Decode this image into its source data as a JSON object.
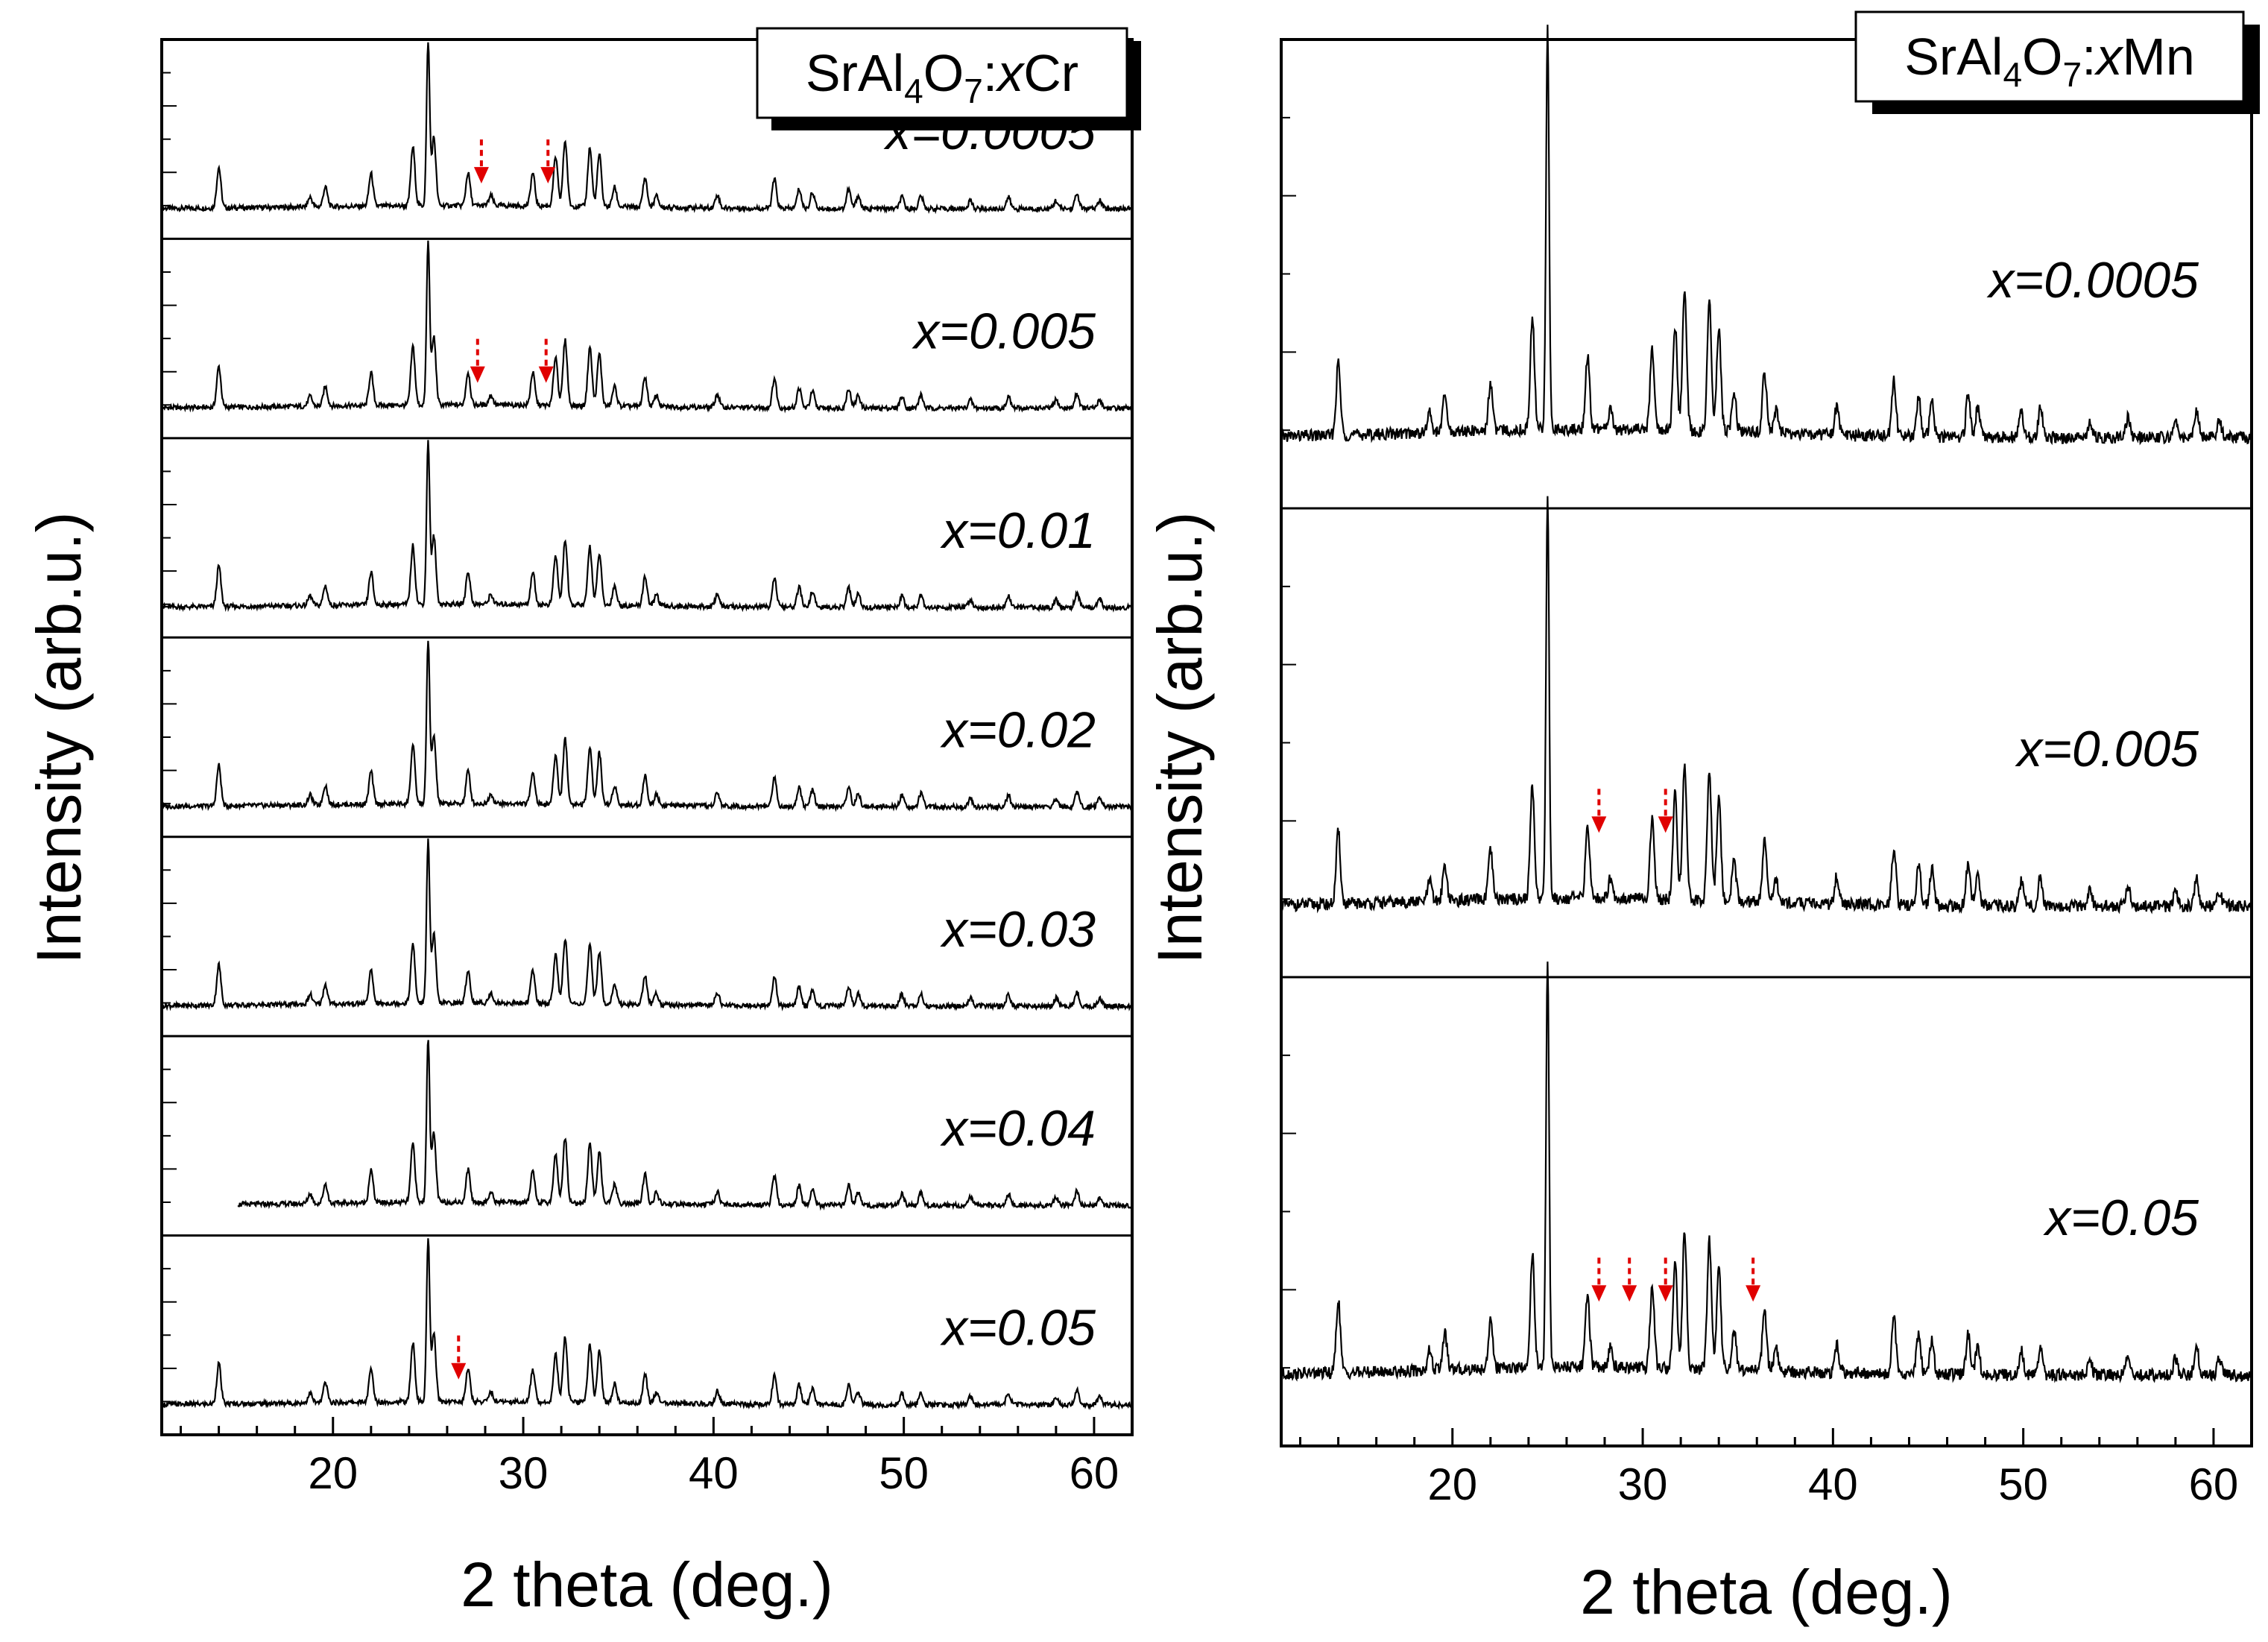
{
  "chart_data": [
    {
      "type": "line",
      "subtype": "stacked-xrd",
      "legend_label": {
        "base": "SrAl",
        "sub1": "4",
        "mid": "O",
        "sub2": "7",
        "sep": ":",
        "dopant_var": "x",
        "dopant": "Cr"
      },
      "xlabel": "2 theta (deg.)",
      "ylabel": "Intensity (arb.u.)",
      "xlim": [
        11,
        62
      ],
      "xticks": [
        20,
        30,
        40,
        50,
        60
      ],
      "xtick_labels": [
        "20",
        "30",
        "40",
        "50",
        "60"
      ],
      "series": [
        {
          "name": "x=0.0005",
          "label": "x=0.0005",
          "impurity_markers": [
            27.8,
            31.3
          ]
        },
        {
          "name": "x=0.005",
          "label": "x=0.005",
          "impurity_markers": [
            27.6,
            31.2
          ]
        },
        {
          "name": "x=0.01",
          "label": "x=0.01",
          "impurity_markers": []
        },
        {
          "name": "x=0.02",
          "label": "x=0.02",
          "impurity_markers": []
        },
        {
          "name": "x=0.03",
          "label": "x=0.03",
          "impurity_markers": []
        },
        {
          "name": "x=0.04",
          "label": "x=0.04",
          "impurity_markers": [],
          "x_start": 15
        },
        {
          "name": "x=0.05",
          "label": "x=0.05",
          "impurity_markers": [
            26.6
          ]
        }
      ],
      "peaks": [
        {
          "x": 14.0,
          "h": 0.25
        },
        {
          "x": 18.8,
          "h": 0.06
        },
        {
          "x": 19.6,
          "h": 0.12
        },
        {
          "x": 22.0,
          "h": 0.2
        },
        {
          "x": 24.2,
          "h": 0.36
        },
        {
          "x": 25.0,
          "h": 1.0
        },
        {
          "x": 25.3,
          "h": 0.42
        },
        {
          "x": 27.1,
          "h": 0.2
        },
        {
          "x": 28.3,
          "h": 0.06
        },
        {
          "x": 30.5,
          "h": 0.2
        },
        {
          "x": 31.7,
          "h": 0.3
        },
        {
          "x": 32.2,
          "h": 0.4
        },
        {
          "x": 33.5,
          "h": 0.36
        },
        {
          "x": 34.0,
          "h": 0.32
        },
        {
          "x": 34.8,
          "h": 0.12
        },
        {
          "x": 36.4,
          "h": 0.18
        },
        {
          "x": 37.0,
          "h": 0.07
        },
        {
          "x": 40.2,
          "h": 0.08
        },
        {
          "x": 43.2,
          "h": 0.18
        },
        {
          "x": 44.5,
          "h": 0.12
        },
        {
          "x": 45.2,
          "h": 0.1
        },
        {
          "x": 47.1,
          "h": 0.12
        },
        {
          "x": 47.6,
          "h": 0.08
        },
        {
          "x": 49.9,
          "h": 0.07
        },
        {
          "x": 50.9,
          "h": 0.08
        },
        {
          "x": 53.5,
          "h": 0.05
        },
        {
          "x": 55.5,
          "h": 0.07
        },
        {
          "x": 58.0,
          "h": 0.05
        },
        {
          "x": 59.1,
          "h": 0.09
        },
        {
          "x": 60.3,
          "h": 0.05
        }
      ]
    },
    {
      "type": "line",
      "subtype": "stacked-xrd",
      "legend_label": {
        "base": "SrAl",
        "sub1": "4",
        "mid": "O",
        "sub2": "7",
        "sep": ":",
        "dopant_var": "x",
        "dopant": "Mn"
      },
      "xlabel": "2 theta (deg.)",
      "ylabel": "Intensity (arb.u.)",
      "xlim": [
        11,
        62
      ],
      "xticks": [
        20,
        30,
        40,
        50,
        60
      ],
      "xtick_labels": [
        "20",
        "30",
        "40",
        "50",
        "60"
      ],
      "series": [
        {
          "name": "x=0.0005",
          "label": "x=0.0005",
          "impurity_markers": []
        },
        {
          "name": "x=0.005",
          "label": "x=0.005",
          "impurity_markers": [
            27.7,
            31.2
          ]
        },
        {
          "name": "x=0.05",
          "label": "x=0.05",
          "impurity_markers": [
            27.7,
            29.3,
            31.2,
            35.8
          ]
        }
      ],
      "peaks": [
        {
          "x": 14.0,
          "h": 0.18
        },
        {
          "x": 18.8,
          "h": 0.05
        },
        {
          "x": 19.6,
          "h": 0.09
        },
        {
          "x": 22.0,
          "h": 0.12
        },
        {
          "x": 24.2,
          "h": 0.28
        },
        {
          "x": 25.0,
          "h": 1.0
        },
        {
          "x": 27.1,
          "h": 0.18
        },
        {
          "x": 28.3,
          "h": 0.05
        },
        {
          "x": 30.5,
          "h": 0.2
        },
        {
          "x": 31.7,
          "h": 0.26
        },
        {
          "x": 32.2,
          "h": 0.34
        },
        {
          "x": 33.5,
          "h": 0.32
        },
        {
          "x": 34.0,
          "h": 0.26
        },
        {
          "x": 34.8,
          "h": 0.1
        },
        {
          "x": 36.4,
          "h": 0.15
        },
        {
          "x": 37.0,
          "h": 0.06
        },
        {
          "x": 40.2,
          "h": 0.07
        },
        {
          "x": 43.2,
          "h": 0.14
        },
        {
          "x": 44.5,
          "h": 0.1
        },
        {
          "x": 45.2,
          "h": 0.09
        },
        {
          "x": 47.1,
          "h": 0.1
        },
        {
          "x": 47.6,
          "h": 0.07
        },
        {
          "x": 49.9,
          "h": 0.06
        },
        {
          "x": 50.9,
          "h": 0.07
        },
        {
          "x": 53.5,
          "h": 0.04
        },
        {
          "x": 55.5,
          "h": 0.05
        },
        {
          "x": 58.0,
          "h": 0.04
        },
        {
          "x": 59.1,
          "h": 0.07
        },
        {
          "x": 60.3,
          "h": 0.04
        }
      ]
    }
  ],
  "colors": {
    "trace": "#000000",
    "marker": "#e00000",
    "frame": "#000000",
    "background": "#ffffff"
  }
}
